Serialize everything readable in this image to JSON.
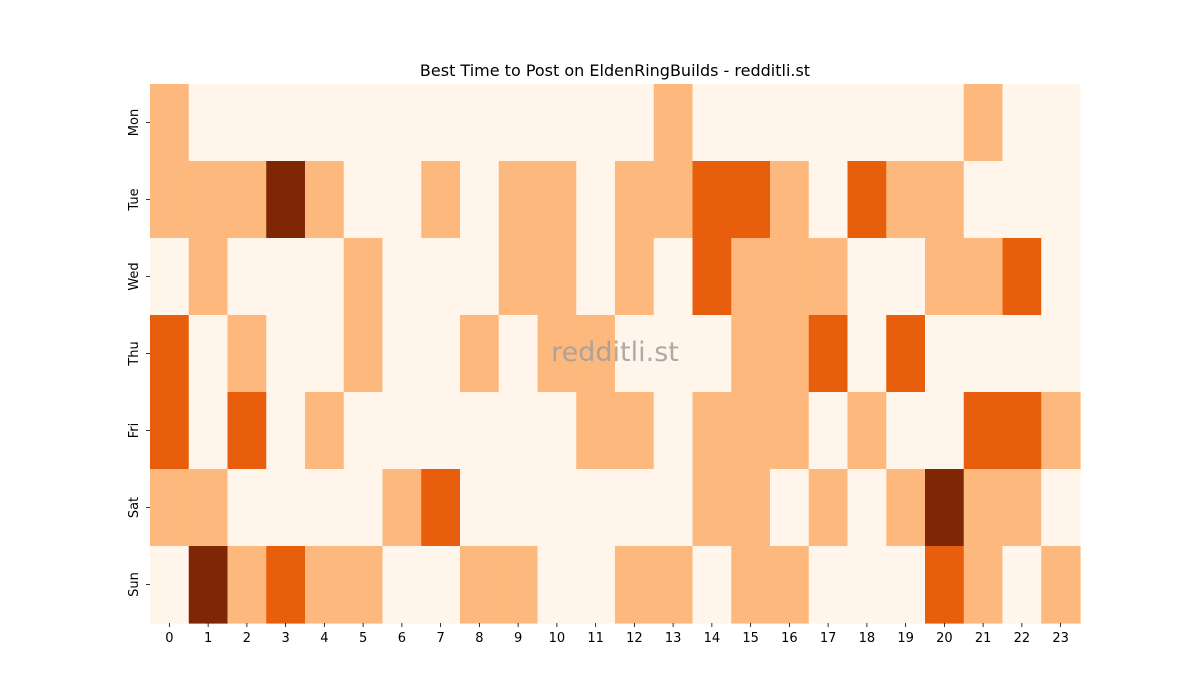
{
  "chart_data": {
    "type": "heatmap",
    "title": "Best Time to Post on EldenRingBuilds - redditli.st",
    "watermark": "redditli.st",
    "xlabel": "",
    "ylabel": "",
    "x_categories": [
      "0",
      "1",
      "2",
      "3",
      "4",
      "5",
      "6",
      "7",
      "8",
      "9",
      "10",
      "11",
      "12",
      "13",
      "14",
      "15",
      "16",
      "17",
      "18",
      "19",
      "20",
      "21",
      "22",
      "23"
    ],
    "y_categories": [
      "Mon",
      "Tue",
      "Wed",
      "Thu",
      "Fri",
      "Sat",
      "Sun"
    ],
    "levels": 4,
    "colors": [
      "#fff5eb",
      "#fdb97d",
      "#e95e0d",
      "#7f2704"
    ],
    "values": [
      [
        1,
        0,
        0,
        0,
        0,
        0,
        0,
        0,
        0,
        0,
        0,
        0,
        0,
        1,
        0,
        0,
        0,
        0,
        0,
        0,
        0,
        1,
        0,
        0
      ],
      [
        1,
        1,
        1,
        3,
        1,
        0,
        0,
        1,
        0,
        1,
        1,
        0,
        1,
        1,
        2,
        2,
        1,
        0,
        2,
        1,
        1,
        0,
        0,
        0
      ],
      [
        0,
        1,
        0,
        0,
        0,
        1,
        0,
        0,
        0,
        1,
        1,
        0,
        1,
        0,
        2,
        1,
        1,
        1,
        0,
        0,
        1,
        1,
        2,
        0
      ],
      [
        2,
        0,
        1,
        0,
        0,
        1,
        0,
        0,
        1,
        0,
        1,
        1,
        0,
        0,
        0,
        1,
        1,
        2,
        0,
        2,
        0,
        0,
        0,
        0
      ],
      [
        2,
        0,
        2,
        0,
        1,
        0,
        0,
        0,
        0,
        0,
        0,
        1,
        1,
        0,
        1,
        1,
        1,
        0,
        1,
        0,
        0,
        2,
        2,
        1
      ],
      [
        1,
        1,
        0,
        0,
        0,
        0,
        1,
        2,
        0,
        0,
        0,
        0,
        0,
        0,
        1,
        1,
        0,
        1,
        0,
        1,
        3,
        1,
        1,
        0
      ],
      [
        0,
        3,
        1,
        2,
        1,
        1,
        0,
        0,
        1,
        1,
        0,
        0,
        1,
        1,
        0,
        1,
        1,
        0,
        0,
        0,
        2,
        1,
        0,
        1
      ]
    ]
  }
}
